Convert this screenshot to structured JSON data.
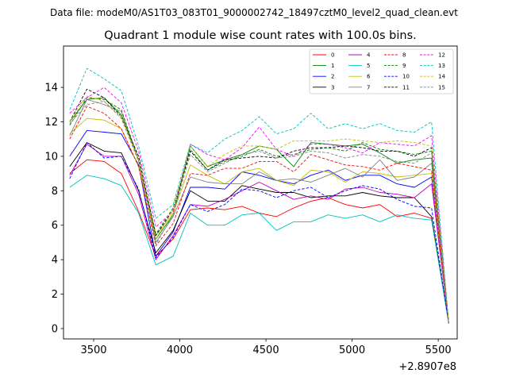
{
  "figure": {
    "suptitle": "Data file: modeM0/AS1T03_083T01_9000002742_18497cztM0_level2_quad_clean.evt"
  },
  "chart_data": {
    "type": "line",
    "title": "Quadrant 1 module wise count rates with 100.0s bins.",
    "xlabel": "",
    "ylabel": "",
    "x_offset_label": "+2.8907e8",
    "xlim": [
      3325,
      5610
    ],
    "ylim": [
      -0.6,
      16.4
    ],
    "xticks": [
      3500,
      4000,
      4500,
      5000,
      5500
    ],
    "xtick_labels": [
      "3500",
      "4000",
      "4500",
      "5000",
      "5500"
    ],
    "yticks": [
      0,
      2,
      4,
      6,
      8,
      10,
      12,
      14
    ],
    "ytick_labels": [
      "0",
      "2",
      "4",
      "6",
      "8",
      "10",
      "12",
      "14"
    ],
    "grid": false,
    "legend_position": "top-right",
    "legend_columns": 4,
    "x": [
      3361,
      3461,
      3561,
      3661,
      3761,
      3861,
      3961,
      4061,
      4161,
      4261,
      4361,
      4461,
      4561,
      4661,
      4761,
      4861,
      4961,
      5061,
      5161,
      5261,
      5361,
      5461,
      5561
    ],
    "series": [
      {
        "name": "0",
        "color": "#ff0000",
        "dash": "solid",
        "values": [
          9.0,
          9.8,
          9.7,
          9.0,
          6.8,
          4.2,
          5.2,
          6.9,
          7.0,
          6.9,
          7.1,
          6.7,
          6.5,
          7.0,
          7.4,
          7.6,
          7.2,
          7.0,
          7.2,
          6.5,
          6.7,
          6.4,
          0.3
        ]
      },
      {
        "name": "1",
        "color": "#008000",
        "dash": "solid",
        "values": [
          12.0,
          13.3,
          13.4,
          12.4,
          9.8,
          5.2,
          6.6,
          10.6,
          9.4,
          9.8,
          10.1,
          10.6,
          10.4,
          9.4,
          10.8,
          10.7,
          10.6,
          10.7,
          10.2,
          9.6,
          9.8,
          9.9,
          0.3
        ]
      },
      {
        "name": "2",
        "color": "#0000ff",
        "dash": "solid",
        "values": [
          10.0,
          11.5,
          11.4,
          11.3,
          9.5,
          4.2,
          5.6,
          8.2,
          8.2,
          8.1,
          9.1,
          8.9,
          8.6,
          8.4,
          8.9,
          9.2,
          8.6,
          8.9,
          8.9,
          8.4,
          8.2,
          8.8,
          0.3
        ]
      },
      {
        "name": "3",
        "color": "#000000",
        "dash": "solid",
        "values": [
          9.4,
          10.8,
          10.3,
          10.2,
          8.0,
          4.4,
          5.7,
          8.0,
          7.4,
          7.4,
          8.3,
          8.1,
          7.9,
          7.9,
          7.6,
          7.7,
          7.7,
          7.9,
          7.7,
          7.6,
          7.6,
          6.5,
          0.3
        ]
      },
      {
        "name": "4",
        "color": "#c000c0",
        "dash": "solid",
        "values": [
          8.9,
          10.7,
          10.0,
          10.0,
          7.8,
          4.0,
          5.4,
          7.2,
          7.1,
          7.5,
          8.0,
          8.5,
          8.0,
          7.5,
          7.7,
          7.5,
          8.1,
          8.2,
          7.9,
          7.8,
          7.6,
          8.4,
          0.3
        ]
      },
      {
        "name": "5",
        "color": "#00c0c0",
        "dash": "solid",
        "values": [
          8.2,
          8.9,
          8.7,
          8.3,
          6.7,
          3.7,
          4.2,
          6.7,
          6.0,
          6.0,
          6.6,
          6.7,
          5.7,
          6.2,
          6.2,
          6.6,
          6.4,
          6.6,
          6.2,
          6.6,
          6.4,
          6.3,
          0.3
        ]
      },
      {
        "name": "6",
        "color": "#c0c000",
        "dash": "solid",
        "values": [
          11.3,
          12.2,
          12.1,
          11.6,
          9.4,
          5.4,
          6.7,
          9.5,
          8.9,
          8.4,
          9.1,
          9.3,
          8.6,
          8.3,
          9.2,
          9.1,
          8.5,
          9.1,
          9.0,
          8.8,
          8.9,
          9.0,
          0.3
        ]
      },
      {
        "name": "7",
        "color": "#808080",
        "dash": "solid",
        "values": [
          11.2,
          13.3,
          13.0,
          12.6,
          9.8,
          5.0,
          6.5,
          8.8,
          8.5,
          8.4,
          8.4,
          9.1,
          8.6,
          8.7,
          8.5,
          8.9,
          9.3,
          8.8,
          9.8,
          8.6,
          8.8,
          9.6,
          0.3
        ]
      },
      {
        "name": "8",
        "color": "#ff0000",
        "dash": "dashed",
        "values": [
          11.0,
          12.9,
          12.5,
          11.6,
          9.4,
          4.8,
          6.1,
          9.0,
          8.9,
          9.3,
          9.3,
          9.7,
          9.7,
          9.1,
          10.1,
          9.8,
          9.5,
          9.4,
          9.2,
          9.6,
          9.4,
          9.2,
          0.3
        ]
      },
      {
        "name": "9",
        "color": "#008000",
        "dash": "dashed",
        "values": [
          11.8,
          13.4,
          13.3,
          12.7,
          9.8,
          5.5,
          7.0,
          10.4,
          9.2,
          9.7,
          10.0,
          10.4,
          10.0,
          10.1,
          10.4,
          10.5,
          10.3,
          10.8,
          10.4,
          10.3,
          10.1,
          10.3,
          0.3
        ]
      },
      {
        "name": "10",
        "color": "#0000ff",
        "dash": "dashed",
        "values": [
          8.7,
          10.8,
          9.9,
          10.0,
          8.1,
          4.1,
          5.3,
          7.2,
          6.8,
          7.2,
          8.1,
          8.0,
          7.6,
          8.0,
          8.2,
          7.6,
          8.0,
          8.3,
          8.1,
          7.5,
          7.1,
          7.0,
          0.3
        ]
      },
      {
        "name": "11",
        "color": "#000000",
        "dash": "dashed",
        "values": [
          12.0,
          13.9,
          13.4,
          12.3,
          10.0,
          5.4,
          6.9,
          10.3,
          9.2,
          9.8,
          9.9,
          10.0,
          9.9,
          10.3,
          10.5,
          10.5,
          10.6,
          10.5,
          10.3,
          10.3,
          10.0,
          10.5,
          0.3
        ]
      },
      {
        "name": "12",
        "color": "#ff00ff",
        "dash": "dashed",
        "values": [
          12.5,
          13.4,
          14.0,
          13.1,
          10.3,
          5.9,
          6.8,
          10.7,
          10.1,
          9.8,
          10.5,
          11.7,
          10.4,
          10.0,
          10.7,
          10.7,
          10.5,
          10.2,
          10.8,
          10.7,
          10.6,
          11.2,
          0.3
        ]
      },
      {
        "name": "13",
        "color": "#00c0c0",
        "dash": "dashed",
        "values": [
          12.7,
          15.1,
          14.5,
          13.8,
          10.6,
          6.4,
          7.2,
          10.7,
          10.2,
          11.0,
          11.5,
          12.3,
          11.3,
          11.6,
          12.5,
          11.6,
          11.9,
          11.6,
          11.9,
          11.5,
          11.4,
          12.0,
          0.3
        ]
      },
      {
        "name": "14",
        "color": "#c0c000",
        "dash": "dashed",
        "values": [
          12.0,
          13.5,
          13.2,
          12.3,
          9.8,
          5.2,
          6.9,
          10.6,
          9.4,
          10.1,
          10.6,
          10.6,
          10.4,
          10.9,
          10.9,
          10.9,
          11.0,
          10.9,
          10.8,
          10.9,
          10.8,
          10.6,
          0.3
        ]
      },
      {
        "name": "15",
        "color": "#808080",
        "dash": "dashed",
        "values": [
          11.9,
          13.0,
          13.2,
          12.2,
          9.7,
          4.9,
          6.6,
          10.1,
          9.1,
          9.6,
          10.1,
          10.3,
          9.9,
          10.0,
          10.3,
          10.2,
          9.9,
          10.1,
          10.0,
          9.7,
          9.6,
          10.2,
          0.3
        ]
      }
    ]
  }
}
